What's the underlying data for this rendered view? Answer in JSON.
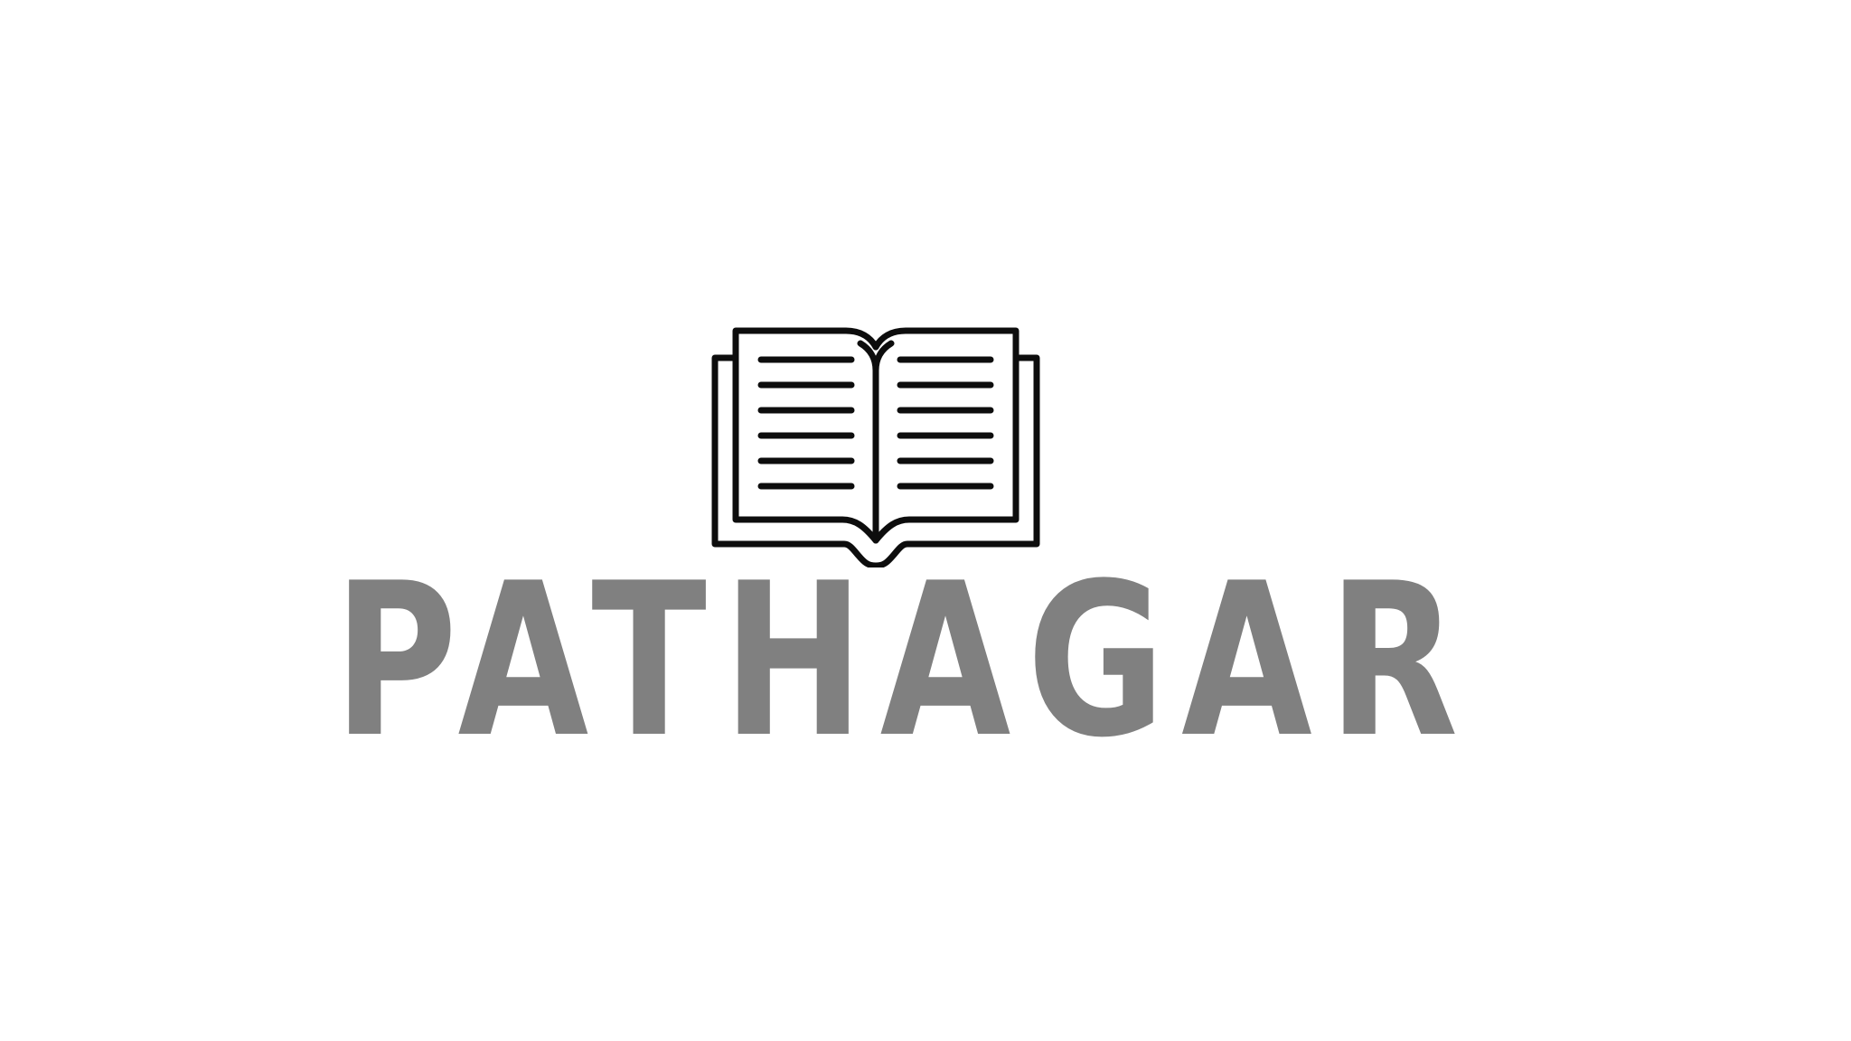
{
  "logo": {
    "icon": "open-book-icon",
    "wordmark": "PATHAGAR",
    "wordmark_color": "#808080",
    "icon_stroke_color": "#0d0d0d",
    "background_color": "#ffffff"
  }
}
